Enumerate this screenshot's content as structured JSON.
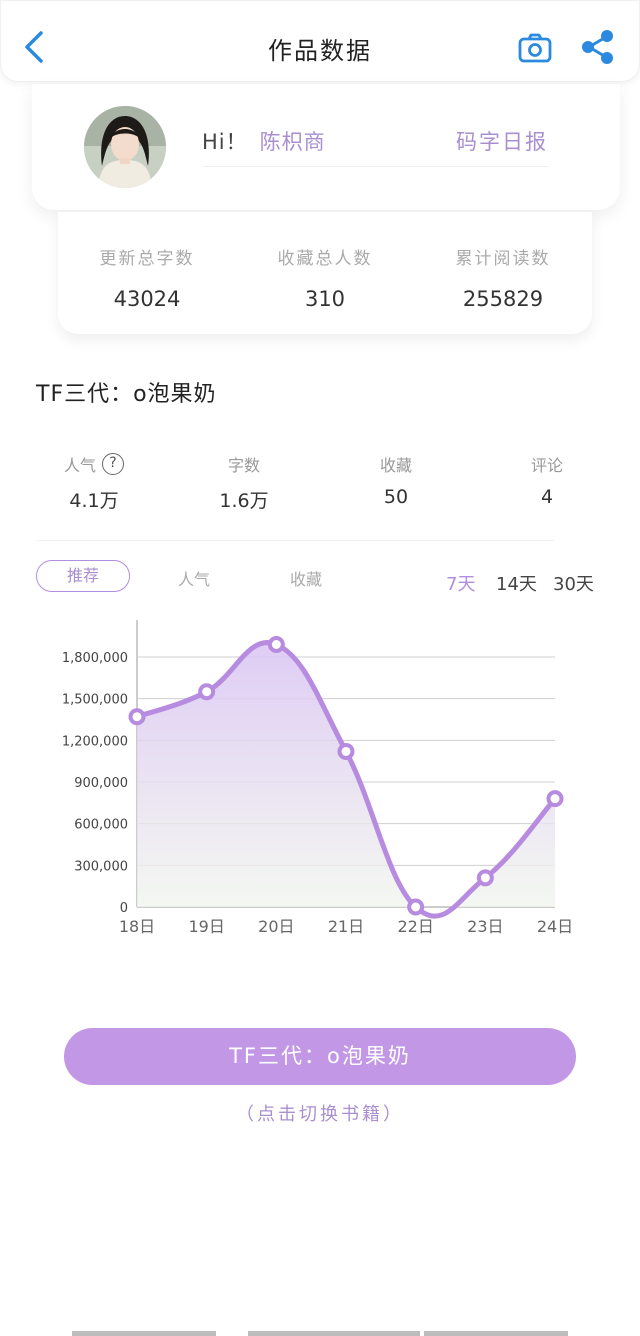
{
  "header": {
    "title": "作品数据",
    "back_icon": "chevron-left-icon",
    "camera_icon": "camera-icon",
    "share_icon": "share-icon",
    "accent": "#2b8ae0"
  },
  "profile": {
    "greeting": "Hi！",
    "name": "陈枳商",
    "daily_report": "码字日报"
  },
  "stats": [
    {
      "label": "更新总字数",
      "value": "43024"
    },
    {
      "label": "收藏总人数",
      "value": "310"
    },
    {
      "label": "累计阅读数",
      "value": "255829"
    }
  ],
  "book": {
    "title": "TF三代：o泡果奶"
  },
  "metrics": [
    {
      "label": "人气",
      "value": "4.1万"
    },
    {
      "label": "字数",
      "value": "1.6万"
    },
    {
      "label": "收藏",
      "value": "50"
    },
    {
      "label": "评论",
      "value": "4"
    }
  ],
  "tabs": {
    "active": "推荐",
    "others": [
      "人气",
      "收藏"
    ]
  },
  "periods": [
    "7天",
    "14天",
    "30天"
  ],
  "active_period": "7天",
  "chart_data": {
    "type": "area",
    "categories": [
      "18日",
      "19日",
      "20日",
      "21日",
      "22日",
      "23日",
      "24日"
    ],
    "values": [
      1370000,
      1550000,
      1890000,
      1120000,
      0,
      210000,
      780000
    ],
    "y_ticks": [
      "0",
      "300,000",
      "600,000",
      "900,000",
      "1,200,000",
      "1,500,000",
      "1,800,000"
    ],
    "ylim": [
      0,
      2000000
    ],
    "grid": true,
    "smooth": true,
    "color": "#b68be0",
    "title": "",
    "xlabel": "",
    "ylabel": ""
  },
  "footer": {
    "switch_button": "TF三代：o泡果奶",
    "switch_hint": "（点击切换书籍）",
    "accent": "#c197e6"
  }
}
